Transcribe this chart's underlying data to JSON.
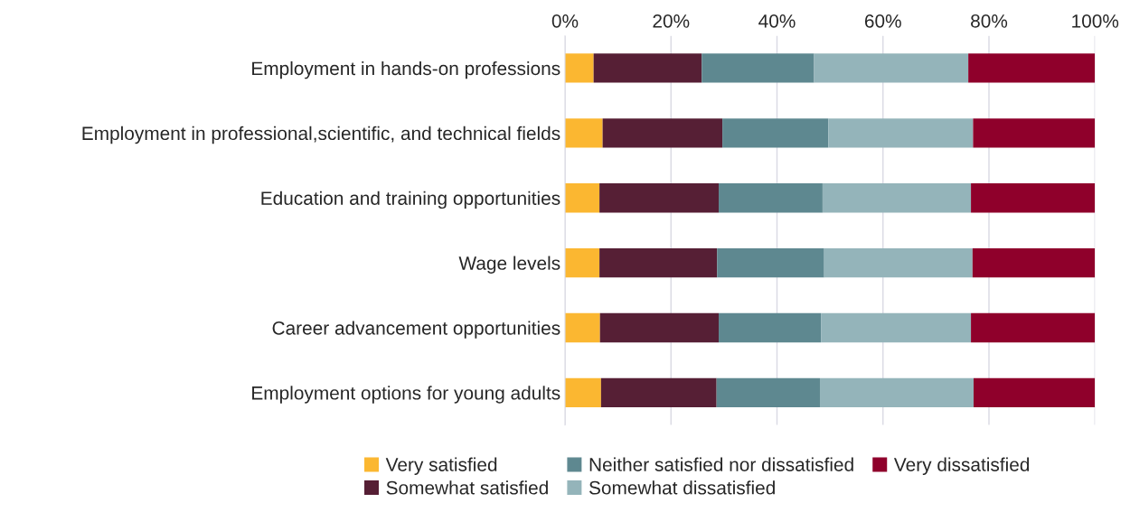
{
  "chart_data": {
    "type": "bar",
    "orientation": "horizontal",
    "stacked": true,
    "categories": [
      "Employment in hands-on professions",
      "Employment in professional,scientific, and technical fields",
      "Education and training opportunities",
      "Wage levels",
      "Career advancement opportunities",
      "Employment options for young adults"
    ],
    "series": [
      {
        "name": "Very satisfied",
        "color": "#fbb731",
        "values": [
          5.4,
          7.1,
          6.5,
          6.5,
          6.6,
          6.8
        ]
      },
      {
        "name": "Somewhat satisfied",
        "color": "#561f35",
        "values": [
          20.4,
          22.6,
          22.5,
          22.2,
          22.4,
          21.8
        ]
      },
      {
        "name": "Neither satisfied nor dissatisfied",
        "color": "#5e8890",
        "values": [
          21.2,
          20.0,
          19.6,
          20.2,
          19.3,
          19.5
        ]
      },
      {
        "name": "Somewhat dissatisfied",
        "color": "#94b4ba",
        "values": [
          29.1,
          27.3,
          28.0,
          28.0,
          28.3,
          29.0
        ]
      },
      {
        "name": "Very dissatisfied",
        "color": "#8f002b",
        "values": [
          23.9,
          23.0,
          23.4,
          23.1,
          23.4,
          22.9
        ]
      }
    ],
    "xlim": [
      0,
      100
    ],
    "xticks": [
      {
        "value": 0,
        "label": "0%"
      },
      {
        "value": 20,
        "label": "20%"
      },
      {
        "value": 40,
        "label": "40%"
      },
      {
        "value": 60,
        "label": "60%"
      },
      {
        "value": 80,
        "label": "80%"
      },
      {
        "value": 100,
        "label": "100%"
      }
    ],
    "grid": "x",
    "legend": "bottom"
  }
}
